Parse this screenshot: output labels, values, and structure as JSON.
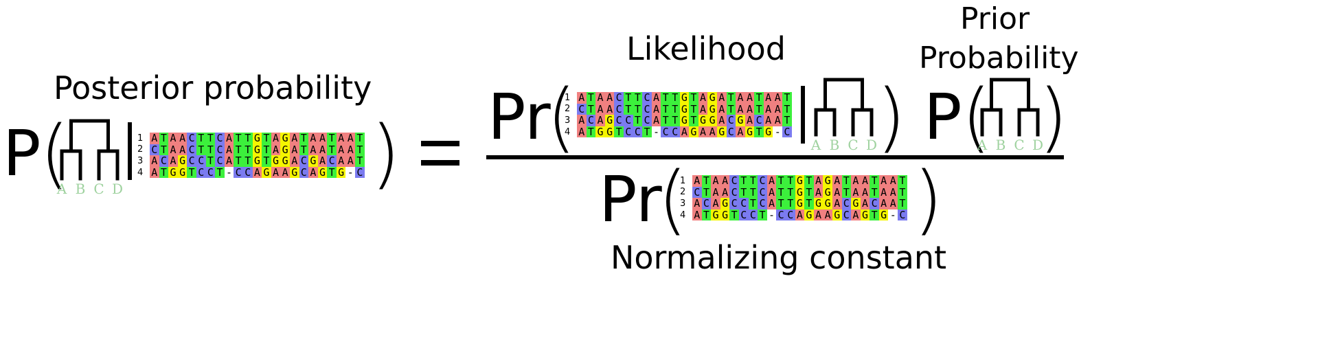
{
  "labels": {
    "posterior": "Posterior probability",
    "likelihood": "Likelihood",
    "prior_line1": "Prior",
    "prior_line2": "Probability",
    "normalizing": "Normalizing constant"
  },
  "symbols": {
    "P": "P",
    "Pr": "Pr",
    "open_paren": "(",
    "close_paren": ")",
    "bar": "|",
    "equals": "="
  },
  "tree": {
    "taxa": [
      "A",
      "B",
      "C",
      "D"
    ]
  },
  "alignment": {
    "row_numbers": [
      "1",
      "2",
      "3",
      "4"
    ],
    "sequences": [
      "ATAACTTCATTGTAGATAATAAT",
      "CTAACTTCATTGTAGATAATAAT",
      "ACAGCCTCATTGTGGACGACAAT",
      "ATGGTCCT-CCAGAAGCAGTG-C"
    ]
  },
  "colors": {
    "A": "#f08080",
    "C": "#7b7bf0",
    "G": "#f5f500",
    "T": "#3cf03c",
    "gap": "#ffffff",
    "leaf": "#9fd29f",
    "ink": "#000000"
  }
}
